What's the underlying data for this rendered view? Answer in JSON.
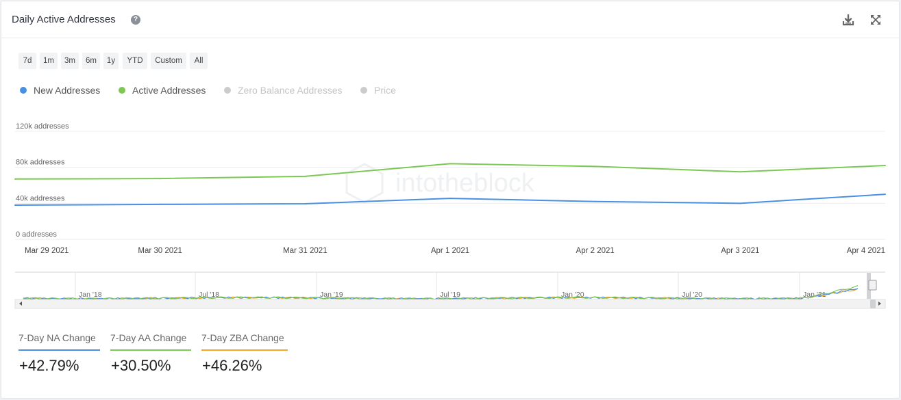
{
  "header": {
    "title": "Daily Active Addresses",
    "help_glyph": "?",
    "icons": [
      "download-icon",
      "expand-icon"
    ]
  },
  "ranges": [
    "7d",
    "1m",
    "3m",
    "6m",
    "1y",
    "YTD",
    "Custom",
    "All"
  ],
  "legend": [
    {
      "label": "New Addresses",
      "color": "#4a90e2",
      "active": true
    },
    {
      "label": "Active Addresses",
      "color": "#7dc855",
      "active": true
    },
    {
      "label": "Zero Balance Addresses",
      "color": "#cccccc",
      "active": false
    },
    {
      "label": "Price",
      "color": "#cccccc",
      "active": false
    }
  ],
  "watermark": "intotheblock",
  "chart_data": {
    "type": "line",
    "x": [
      "Mar 29 2021",
      "Mar 30 2021",
      "Mar 31 2021",
      "Apr 1 2021",
      "Apr 2 2021",
      "Apr 3 2021",
      "Apr 4 2021"
    ],
    "series": [
      {
        "name": "New Addresses",
        "color": "#4a90e2",
        "values": [
          38000,
          38800,
          39500,
          45500,
          42000,
          40000,
          50000
        ]
      },
      {
        "name": "Active Addresses",
        "color": "#7dc855",
        "values": [
          67000,
          67500,
          70000,
          84000,
          81000,
          75000,
          82000
        ]
      }
    ],
    "yticks": [
      "0 addresses",
      "40k addresses",
      "80k addresses",
      "120k addresses"
    ],
    "ytick_values": [
      0,
      40000,
      80000,
      120000
    ],
    "ylim": [
      0,
      120000
    ],
    "navigator_labels": [
      "Jan '18",
      "Jul '18",
      "Jan '19",
      "Jul '19",
      "Jan '20",
      "Jul '20",
      "Jan '21"
    ]
  },
  "stats": [
    {
      "label": "7-Day NA Change",
      "value": "+42.79%",
      "color": "#4a90e2"
    },
    {
      "label": "7-Day AA Change",
      "value": "+30.50%",
      "color": "#7dc855"
    },
    {
      "label": "7-Day ZBA Change",
      "value": "+46.26%",
      "color": "#f5a623"
    }
  ]
}
